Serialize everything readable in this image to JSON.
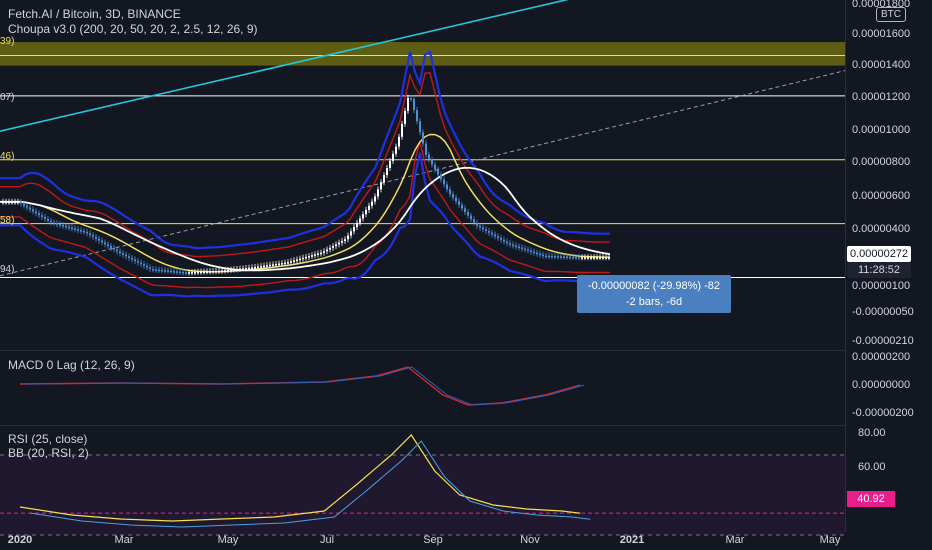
{
  "header": {
    "symbol_line": "Fetch.AI / Bitcoin, 3D, BINANCE",
    "indicator_line": "Choupa v3.0 (200, 20, 50, 20, 2, 2.5, 12, 26, 9)",
    "currency_badge": "BTC"
  },
  "left_edge_labels": {
    "items": [
      "39)",
      "07)",
      "46)",
      "58)",
      "94)"
    ]
  },
  "measure_tooltip": {
    "line1": "-0.00000082 (-29.98%) -82",
    "line2": "-2 bars, -6d"
  },
  "current_price": {
    "value": "0.00000272",
    "countdown": "11:28:52"
  },
  "macd_panel": {
    "label": "MACD 0 Lag (12, 26, 9)"
  },
  "rsi_panel": {
    "label1": "RSI (25, close)",
    "label2": "BB (20, RSI, 2)",
    "current_value": "40.92"
  },
  "colors": {
    "background": "#131722",
    "candle_up": "#ffffff",
    "candle_down": "#4a90d9",
    "upper_band": "#2030e0",
    "inner_band": "#c01818",
    "ma_yellow": "#f0e060",
    "ma_white": "#ffffff",
    "trendline_cyan": "#26c6da",
    "zone_fill": "#6b6b10",
    "rsi_line": "#f5e14a",
    "rsi_pink": "#e91e8c"
  },
  "chart_data": [
    {
      "type": "line",
      "title": "Fetch.AI / Bitcoin, 3D, BINANCE",
      "y_axis_ticks": [
        "0.00001800",
        "0.00001600",
        "0.00001400",
        "0.00001200",
        "0.00001000",
        "0.00000800",
        "0.00000600",
        "0.00000400",
        "0.00000272",
        "0.00000100",
        "-0.00000050",
        "-0.00000210"
      ],
      "x_axis_ticks": [
        "2020",
        "Mar",
        "May",
        "Jul",
        "Sep",
        "Nov",
        "2021",
        "Mar",
        "May"
      ],
      "ylim": [
        -2.1e-06,
        1.8e-05
      ],
      "series": [
        {
          "name": "",
          "x": [
            "2020-01-01",
            "2020-01-20",
            "2020-02-10",
            "2020-03-01",
            "2020-03-20",
            "2020-04-10",
            "2020-05-01",
            "2020-05-20",
            "2020-06-10",
            "2020-07-01",
            "2020-07-15",
            "2020-08-01",
            "2020-08-15",
            "2020-08-22",
            "2020-09-01",
            "2020-09-15",
            "2020-10-01",
            "2020-10-20",
            "2020-11-10",
            "2020-12-01"
          ],
          "values": [
            6e-06,
            4.8e-06,
            4.2e-06,
            3e-06,
            2e-06,
            1.8e-06,
            1.9e-06,
            2.1e-06,
            2.4e-06,
            3e-06,
            3.8e-06,
            6.2e-06,
            9.5e-06,
            1.25e-05,
            8.8e-06,
            6.5e-06,
            4.6e-06,
            3.5e-06,
            2.8e-06,
            2.7e-06
          ]
        }
      ],
      "horizontal_levels": [
        1.47e-05,
        1.23e-05,
        8.5e-06,
        4.7e-06,
        1.5e-06
      ],
      "zone_range": [
        1.41e-05,
        1.55e-05
      ]
    },
    {
      "type": "line",
      "title": "MACD 0 Lag (12, 26, 9)",
      "y_axis_ticks": [
        "0.00000200",
        "0.00000000",
        "-0.00000200"
      ],
      "ylim": [
        -2.8e-06,
        2.8e-06
      ],
      "series": [
        {
          "name": "",
          "x": [
            "2020-01-01",
            "2020-03-01",
            "2020-05-01",
            "2020-07-01",
            "2020-08-01",
            "2020-08-20",
            "2020-09-10",
            "2020-09-25",
            "2020-10-15",
            "2020-11-10",
            "2020-12-01"
          ],
          "values": [
            1e-07,
            2e-07,
            1e-07,
            3e-07,
            9e-07,
            1.8e-06,
            -1e-06,
            -2e-06,
            -1.8e-06,
            -1e-06,
            0.0
          ]
        }
      ]
    },
    {
      "type": "line",
      "title": "RSI (25, close)",
      "y_axis_ticks": [
        "80.00",
        "60.00",
        "40.92"
      ],
      "ylim": [
        25,
        82
      ],
      "series": [
        {
          "name": "RSI (25, close)",
          "x": [
            "2020-01-01",
            "2020-02-01",
            "2020-03-01",
            "2020-04-01",
            "2020-05-01",
            "2020-06-01",
            "2020-07-01",
            "2020-07-20",
            "2020-08-10",
            "2020-08-22",
            "2020-09-05",
            "2020-09-20",
            "2020-10-10",
            "2020-10-30",
            "2020-11-20",
            "2020-12-01"
          ],
          "values": [
            44,
            40,
            38,
            37,
            38,
            39,
            42,
            55,
            70,
            80,
            62,
            50,
            45,
            43,
            42,
            40.92
          ]
        }
      ]
    }
  ]
}
